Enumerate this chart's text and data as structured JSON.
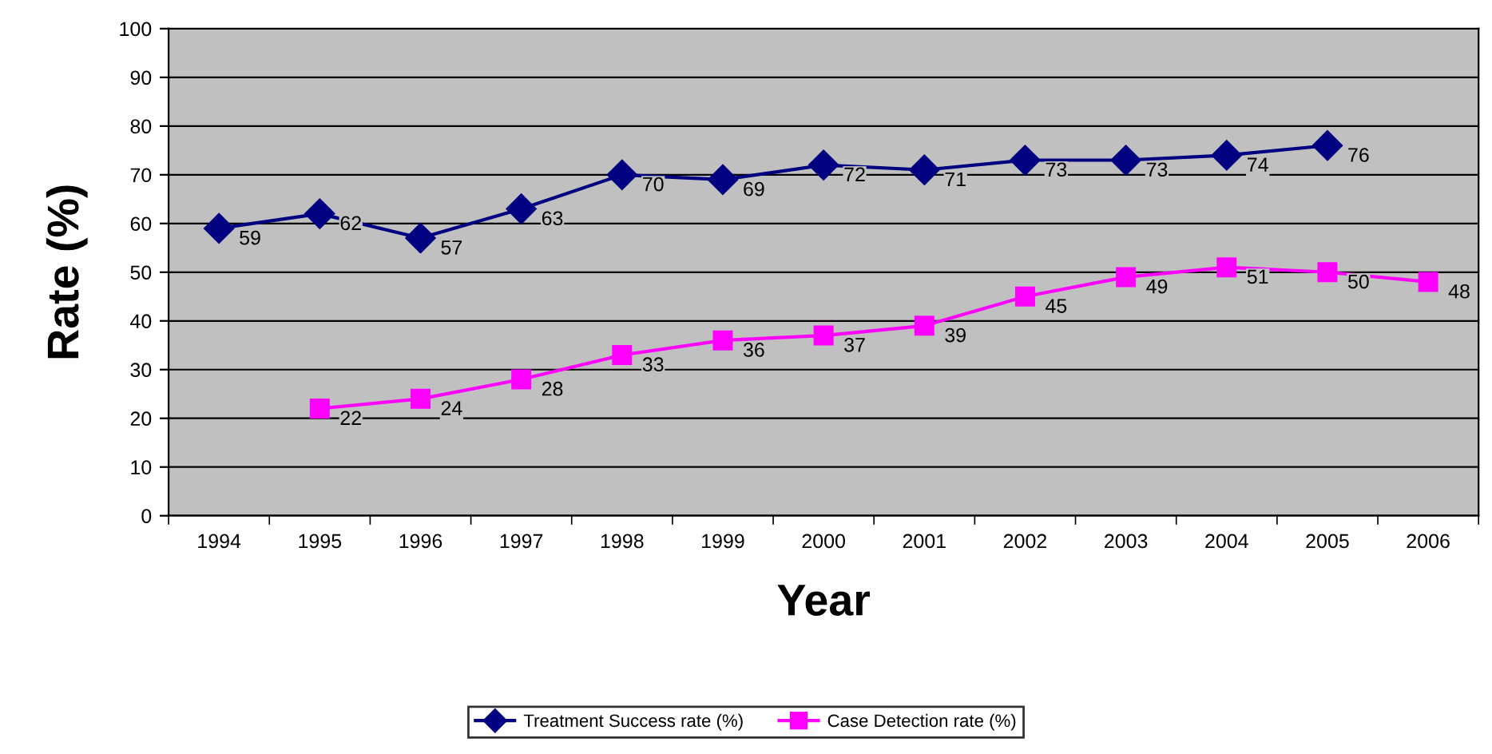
{
  "chart_data": {
    "type": "line",
    "xlabel": "Year",
    "ylabel": "Rate (%)",
    "categories": [
      "1994",
      "1995",
      "1996",
      "1997",
      "1998",
      "1999",
      "2000",
      "2001",
      "2002",
      "2003",
      "2004",
      "2005",
      "2006"
    ],
    "series": [
      {
        "name": "Treatment Success rate (%)",
        "color": "#000080",
        "marker": "diamond",
        "values": [
          59,
          62,
          57,
          63,
          70,
          69,
          72,
          71,
          73,
          73,
          74,
          76,
          null
        ]
      },
      {
        "name": "Case Detection rate (%)",
        "color": "#ff00ff",
        "marker": "square",
        "values": [
          null,
          22,
          24,
          28,
          33,
          36,
          37,
          39,
          45,
          49,
          51,
          50,
          48
        ]
      }
    ],
    "ylim": [
      0,
      100
    ],
    "yticks": [
      0,
      10,
      20,
      30,
      40,
      50,
      60,
      70,
      80,
      90,
      100
    ],
    "grid": "y",
    "legend": "bottom",
    "data_labels": true,
    "line_style": "solid"
  }
}
